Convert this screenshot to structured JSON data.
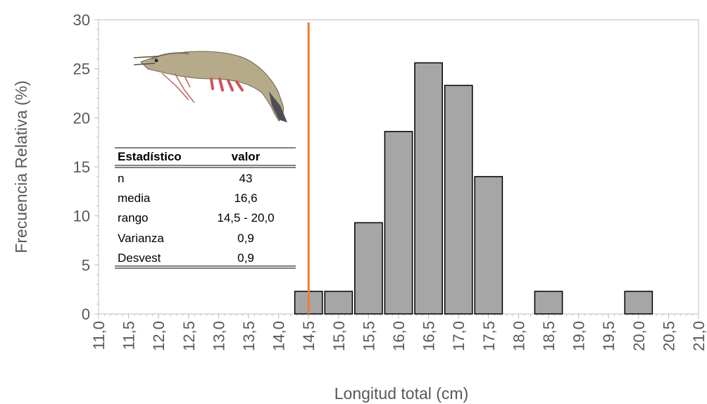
{
  "chart_data": {
    "type": "bar",
    "xlabel": "Longitud total (cm)",
    "ylabel": "Frecuencia Relativa (%)",
    "ylim": [
      0,
      30
    ],
    "yticks": [
      0,
      5,
      10,
      15,
      20,
      25,
      30
    ],
    "xlim": [
      11.0,
      21.0
    ],
    "x_tick_labels": [
      "11,0",
      "11,5",
      "12,0",
      "12,5",
      "13,0",
      "13,5",
      "14,0",
      "14,5",
      "15,0",
      "15,5",
      "16,0",
      "16,5",
      "17,0",
      "17,5",
      "18,0",
      "18,5",
      "19,0",
      "19,5",
      "20,0",
      "20,5",
      "21,0"
    ],
    "bins": [
      {
        "x": 14.5,
        "value": 2.3
      },
      {
        "x": 15.0,
        "value": 2.3
      },
      {
        "x": 15.5,
        "value": 9.3
      },
      {
        "x": 16.0,
        "value": 18.6
      },
      {
        "x": 16.5,
        "value": 25.6
      },
      {
        "x": 17.0,
        "value": 23.3
      },
      {
        "x": 17.5,
        "value": 14.0
      },
      {
        "x": 18.5,
        "value": 2.3
      },
      {
        "x": 20.0,
        "value": 2.3
      }
    ],
    "bar_color": "#a6a6a6",
    "reference_line": {
      "x": 14.5,
      "color": "#ed7d31"
    },
    "grid": false
  },
  "stats_table": {
    "header": [
      "Estadístico",
      "valor"
    ],
    "rows": [
      [
        "n",
        "43"
      ],
      [
        "media",
        "16,6"
      ],
      [
        "rango",
        "14,5 - 20,0"
      ],
      [
        "Varianza",
        "0,9"
      ],
      [
        "Desvest",
        "0,9"
      ]
    ]
  }
}
